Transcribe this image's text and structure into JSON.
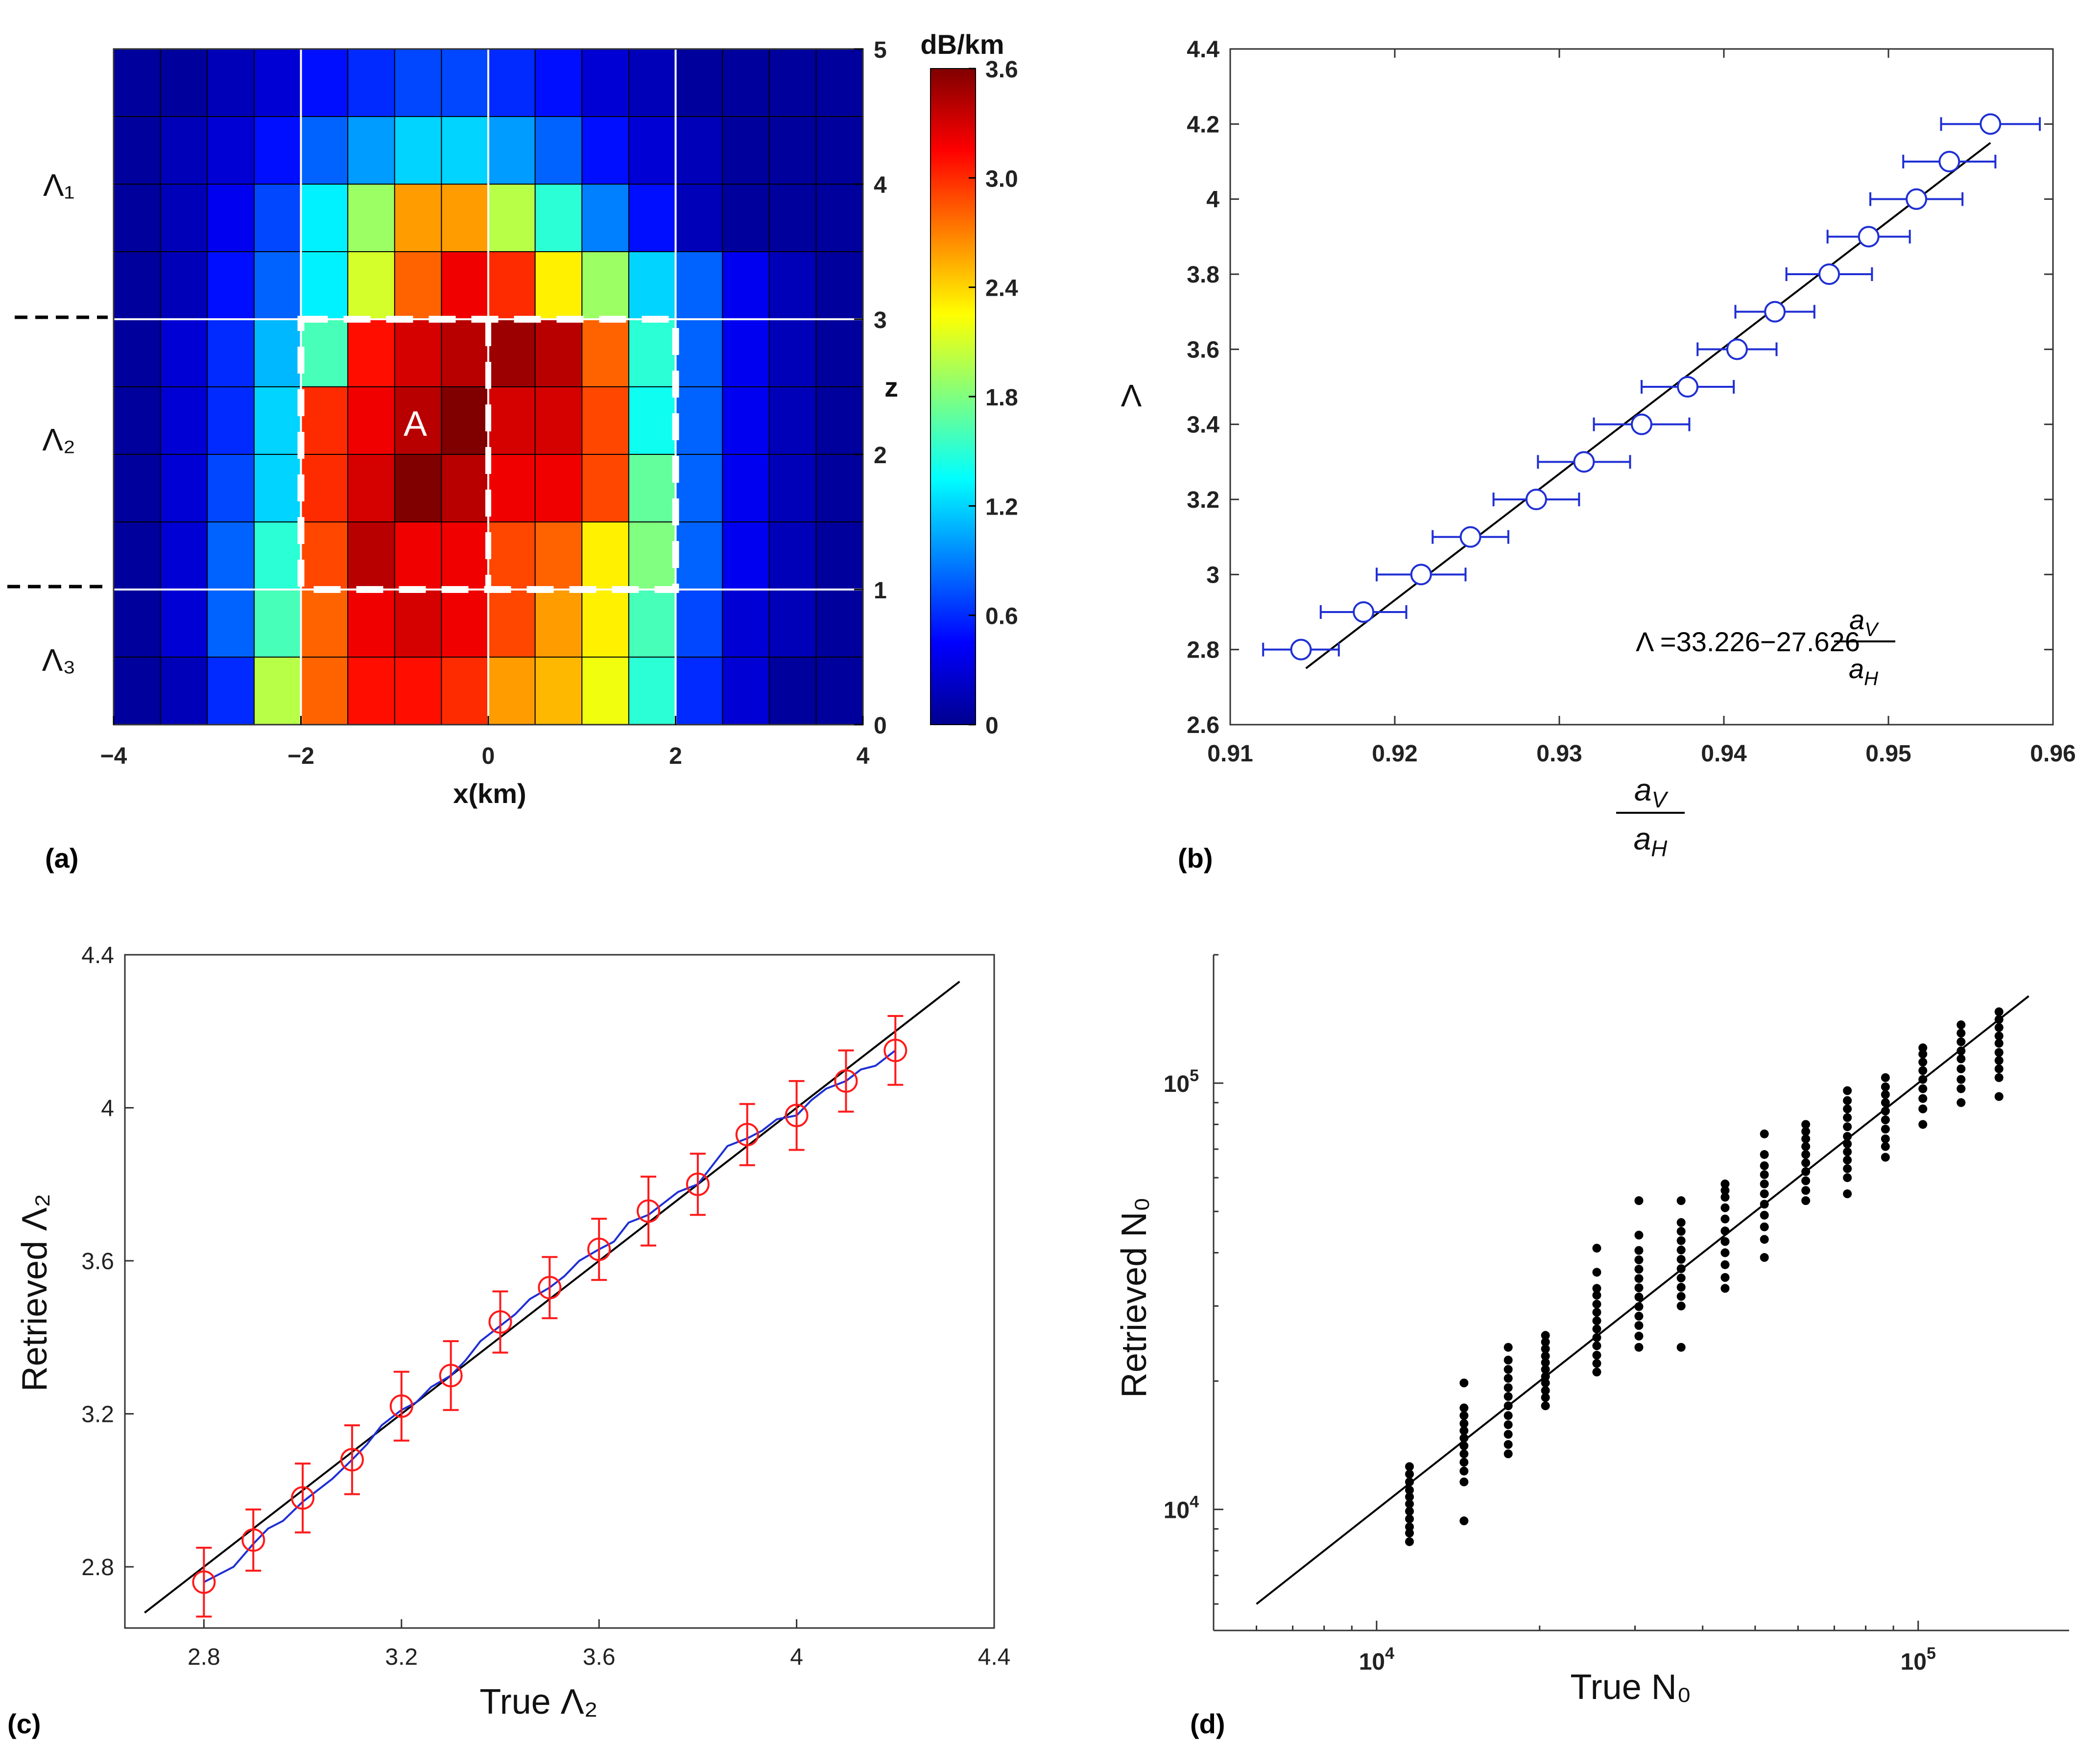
{
  "colors": {
    "blue": "#1f2fd4",
    "red": "#ff1a1a",
    "black": "#000000",
    "grid": "#ffffff"
  },
  "panels": {
    "a": "(a)",
    "b": "(b)",
    "c": "(c)",
    "d": "(d)"
  },
  "chart_data": [
    {
      "type": "heatmap",
      "xlabel": "x(km)",
      "ylabel": "z",
      "xlim": [
        -4,
        4
      ],
      "ylim": [
        0,
        5
      ],
      "xticks": [
        "−4",
        "−2",
        "0",
        "2",
        "4"
      ],
      "zticks": [
        "0",
        "1",
        "2",
        "3",
        "4",
        "5"
      ],
      "colorbar": {
        "title": "dB/km",
        "range": [
          0,
          3.6
        ],
        "ticks": [
          "0",
          "0.6",
          "1.2",
          "1.8",
          "2.4",
          "3.0",
          "3.6"
        ]
      },
      "layer_labels": [
        "Λ₁",
        "Λ₂",
        "Λ₃"
      ],
      "annotation": "A",
      "cell_size_km": [
        0.5,
        0.5
      ],
      "values_rows_top_to_bottom": [
        [
          0.1,
          0.1,
          0.2,
          0.3,
          0.5,
          0.6,
          0.7,
          0.7,
          0.6,
          0.5,
          0.3,
          0.2,
          0.1,
          0.1,
          0.1,
          0.1
        ],
        [
          0.1,
          0.2,
          0.3,
          0.5,
          0.8,
          1.0,
          1.2,
          1.2,
          1.0,
          0.8,
          0.5,
          0.3,
          0.2,
          0.1,
          0.1,
          0.1
        ],
        [
          0.1,
          0.2,
          0.4,
          0.7,
          1.3,
          1.9,
          2.6,
          2.6,
          2.0,
          1.5,
          0.9,
          0.5,
          0.2,
          0.1,
          0.1,
          0.1
        ],
        [
          0.1,
          0.2,
          0.5,
          0.8,
          1.3,
          2.1,
          2.8,
          3.2,
          3.0,
          2.3,
          1.9,
          1.2,
          0.8,
          0.4,
          0.2,
          0.1
        ],
        [
          0.1,
          0.3,
          0.6,
          1.1,
          1.6,
          3.1,
          3.3,
          3.4,
          3.5,
          3.4,
          2.8,
          1.5,
          0.8,
          0.4,
          0.2,
          0.1
        ],
        [
          0.1,
          0.3,
          0.6,
          1.2,
          3.0,
          3.2,
          3.4,
          3.6,
          3.3,
          3.3,
          2.9,
          1.4,
          0.8,
          0.4,
          0.2,
          0.1
        ],
        [
          0.1,
          0.3,
          0.7,
          1.2,
          3.0,
          3.3,
          3.6,
          3.4,
          3.2,
          3.2,
          2.9,
          1.7,
          0.8,
          0.4,
          0.2,
          0.1
        ],
        [
          0.1,
          0.3,
          0.8,
          1.5,
          2.9,
          3.4,
          3.2,
          3.2,
          2.9,
          2.8,
          2.3,
          1.8,
          0.8,
          0.4,
          0.2,
          0.1
        ],
        [
          0.1,
          0.3,
          0.8,
          1.6,
          2.8,
          3.2,
          3.3,
          3.2,
          2.9,
          2.6,
          2.3,
          1.6,
          0.7,
          0.3,
          0.2,
          0.1
        ],
        [
          0.1,
          0.2,
          0.6,
          2.0,
          2.8,
          3.1,
          3.1,
          3.0,
          2.6,
          2.5,
          2.2,
          1.5,
          0.6,
          0.3,
          0.1,
          0.1
        ]
      ]
    },
    {
      "type": "scatter",
      "xlabel": "a_V / a_H",
      "ylabel": "Λ",
      "xlim": [
        0.91,
        0.96
      ],
      "ylim": [
        2.6,
        4.4
      ],
      "xticks": [
        "0.91",
        "0.92",
        "0.93",
        "0.94",
        "0.95",
        "0.96"
      ],
      "yticks": [
        "2.6",
        "2.8",
        "3",
        "3.2",
        "3.4",
        "3.6",
        "3.8",
        "4",
        "4.2",
        "4.4"
      ],
      "equation": {
        "prefix": "Λ =33.226−27.626",
        "num": "a",
        "num_sub": "V",
        "den": "a",
        "den_sub": "H"
      },
      "fit_line": {
        "x": [
          0.9146,
          0.9562
        ],
        "y": [
          2.75,
          4.15
        ]
      },
      "points": [
        {
          "x": 0.9143,
          "y": 2.8,
          "xerr": 0.0023
        },
        {
          "x": 0.9181,
          "y": 2.9,
          "xerr": 0.0026
        },
        {
          "x": 0.9216,
          "y": 3.0,
          "xerr": 0.0027
        },
        {
          "x": 0.9246,
          "y": 3.1,
          "xerr": 0.0023
        },
        {
          "x": 0.9286,
          "y": 3.2,
          "xerr": 0.0026
        },
        {
          "x": 0.9315,
          "y": 3.3,
          "xerr": 0.0028
        },
        {
          "x": 0.935,
          "y": 3.4,
          "xerr": 0.0029
        },
        {
          "x": 0.9378,
          "y": 3.5,
          "xerr": 0.0028
        },
        {
          "x": 0.9408,
          "y": 3.6,
          "xerr": 0.0024
        },
        {
          "x": 0.9431,
          "y": 3.7,
          "xerr": 0.0024
        },
        {
          "x": 0.9464,
          "y": 3.8,
          "xerr": 0.0026
        },
        {
          "x": 0.9488,
          "y": 3.9,
          "xerr": 0.0025
        },
        {
          "x": 0.9517,
          "y": 4.0,
          "xerr": 0.0028
        },
        {
          "x": 0.9537,
          "y": 4.1,
          "xerr": 0.0028
        },
        {
          "x": 0.9562,
          "y": 4.2,
          "xerr": 0.003
        }
      ]
    },
    {
      "type": "scatter",
      "xlabel": "True  Λ₂",
      "ylabel": "Retrieved  Λ₂",
      "xlim": [
        2.64,
        4.4
      ],
      "ylim": [
        2.64,
        4.4
      ],
      "xticks": [
        "2.8",
        "3.2",
        "3.6",
        "4",
        "4.4"
      ],
      "yticks": [
        "2.8",
        "3.2",
        "3.6",
        "4",
        "4.4"
      ],
      "one_to_one": [
        2.68,
        4.33
      ],
      "points": [
        {
          "x": 2.8,
          "y": 2.76,
          "err": 0.09
        },
        {
          "x": 2.9,
          "y": 2.87,
          "err": 0.08
        },
        {
          "x": 3.0,
          "y": 2.98,
          "err": 0.09
        },
        {
          "x": 3.1,
          "y": 3.08,
          "err": 0.09
        },
        {
          "x": 3.2,
          "y": 3.22,
          "err": 0.09
        },
        {
          "x": 3.3,
          "y": 3.3,
          "err": 0.09
        },
        {
          "x": 3.4,
          "y": 3.44,
          "err": 0.08
        },
        {
          "x": 3.5,
          "y": 3.53,
          "err": 0.08
        },
        {
          "x": 3.6,
          "y": 3.63,
          "err": 0.08
        },
        {
          "x": 3.7,
          "y": 3.73,
          "err": 0.09
        },
        {
          "x": 3.8,
          "y": 3.8,
          "err": 0.08
        },
        {
          "x": 3.9,
          "y": 3.93,
          "err": 0.08
        },
        {
          "x": 4.0,
          "y": 3.98,
          "err": 0.09
        },
        {
          "x": 4.1,
          "y": 4.07,
          "err": 0.08
        },
        {
          "x": 4.2,
          "y": 4.15,
          "err": 0.09
        }
      ],
      "series": [
        {
          "values": [
            [
              2.8,
              2.76
            ],
            [
              2.83,
              2.78
            ],
            [
              2.86,
              2.8
            ],
            [
              2.9,
              2.86
            ],
            [
              2.93,
              2.9
            ],
            [
              2.96,
              2.92
            ],
            [
              3.0,
              2.97
            ],
            [
              3.03,
              3.0
            ],
            [
              3.06,
              3.03
            ],
            [
              3.1,
              3.08
            ],
            [
              3.13,
              3.12
            ],
            [
              3.16,
              3.17
            ],
            [
              3.2,
              3.21
            ],
            [
              3.23,
              3.23
            ],
            [
              3.26,
              3.27
            ],
            [
              3.3,
              3.3
            ],
            [
              3.33,
              3.34
            ],
            [
              3.36,
              3.39
            ],
            [
              3.4,
              3.43
            ],
            [
              3.43,
              3.46
            ],
            [
              3.46,
              3.5
            ],
            [
              3.5,
              3.53
            ],
            [
              3.53,
              3.56
            ],
            [
              3.56,
              3.6
            ],
            [
              3.6,
              3.63
            ],
            [
              3.63,
              3.65
            ],
            [
              3.66,
              3.7
            ],
            [
              3.7,
              3.72
            ],
            [
              3.73,
              3.75
            ],
            [
              3.76,
              3.78
            ],
            [
              3.8,
              3.8
            ],
            [
              3.83,
              3.85
            ],
            [
              3.86,
              3.9
            ],
            [
              3.9,
              3.92
            ],
            [
              3.93,
              3.94
            ],
            [
              3.96,
              3.97
            ],
            [
              4.0,
              3.98
            ],
            [
              4.03,
              4.02
            ],
            [
              4.06,
              4.05
            ],
            [
              4.1,
              4.07
            ],
            [
              4.13,
              4.1
            ],
            [
              4.16,
              4.11
            ],
            [
              4.2,
              4.15
            ]
          ]
        }
      ]
    },
    {
      "type": "scatter",
      "xlabel": "True  N₀",
      "ylabel": "Retrieved  N₀",
      "xscale": "log",
      "yscale": "log",
      "xlim": [
        5000,
        190000
      ],
      "ylim": [
        5200,
        200000
      ],
      "xticks": [
        {
          "base": "10",
          "exp": "4",
          "v": 10000
        },
        {
          "base": "10",
          "exp": "5",
          "v": 100000
        }
      ],
      "yticks": [
        {
          "base": "10",
          "exp": "4",
          "v": 10000
        },
        {
          "base": "10",
          "exp": "5",
          "v": 100000
        }
      ],
      "one_to_one": [
        6000,
        160000
      ],
      "groups": [
        {
          "x": 11500,
          "y": [
            8400,
            8800,
            9100,
            9500,
            9900,
            10300,
            10700,
            11100,
            11600,
            12100,
            12600
          ]
        },
        {
          "x": 14500,
          "y": [
            9400,
            11600,
            12300,
            12900,
            13500,
            14100,
            14700,
            15300,
            15900,
            16600,
            17300,
            19800
          ]
        },
        {
          "x": 17500,
          "y": [
            13500,
            14200,
            15000,
            15800,
            16600,
            17500,
            18400,
            19300,
            20300,
            21300,
            22400,
            24000
          ]
        },
        {
          "x": 20500,
          "y": [
            17500,
            18300,
            19000,
            19800,
            20500,
            21300,
            22100,
            22900,
            23800,
            24700,
            25600
          ]
        },
        {
          "x": 25500,
          "y": [
            21000,
            22000,
            23000,
            24200,
            25300,
            26500,
            27700,
            29000,
            30300,
            31800,
            33000,
            36000,
            41000
          ]
        },
        {
          "x": 30500,
          "y": [
            24000,
            25500,
            27000,
            28400,
            29900,
            31500,
            33100,
            34800,
            36600,
            38500,
            40500,
            44000,
            53000
          ]
        },
        {
          "x": 36500,
          "y": [
            24000,
            30000,
            31600,
            33200,
            34900,
            36700,
            38600,
            40600,
            42700,
            44900,
            47100,
            53000
          ]
        },
        {
          "x": 44000,
          "y": [
            33000,
            35000,
            37500,
            40000,
            42500,
            45000,
            48000,
            51000,
            54000,
            56000,
            58000
          ]
        },
        {
          "x": 52000,
          "y": [
            39000,
            43000,
            46000,
            49000,
            52000,
            55000,
            58000,
            61000,
            64000,
            68000,
            76000
          ]
        },
        {
          "x": 62000,
          "y": [
            53000,
            56000,
            59000,
            62000,
            65000,
            68000,
            71000,
            74000,
            77000,
            80000
          ]
        },
        {
          "x": 74000,
          "y": [
            55000,
            60000,
            63000,
            66000,
            69000,
            72000,
            75000,
            79000,
            83000,
            87000,
            91000,
            96000
          ]
        },
        {
          "x": 87000,
          "y": [
            67000,
            71000,
            74000,
            78000,
            82000,
            86000,
            90000,
            94000,
            98000,
            103000
          ]
        },
        {
          "x": 102000,
          "y": [
            80000,
            87000,
            92000,
            97000,
            102000,
            107000,
            112000,
            117000,
            121000
          ]
        },
        {
          "x": 120000,
          "y": [
            90000,
            97000,
            102000,
            108000,
            114000,
            119000,
            125000,
            131000,
            137000
          ]
        },
        {
          "x": 141000,
          "y": [
            93000,
            103000,
            108000,
            113000,
            118000,
            124000,
            129000,
            135000,
            141000,
            147000
          ]
        }
      ]
    }
  ]
}
